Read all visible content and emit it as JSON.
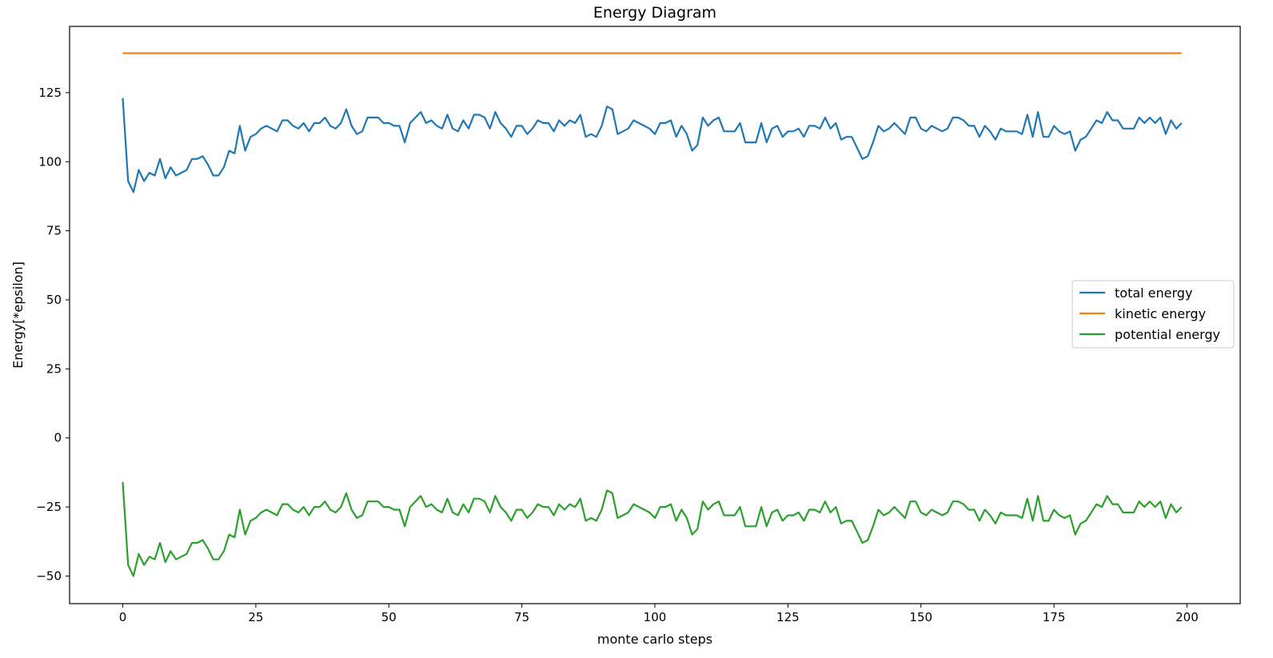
{
  "chart_data": {
    "type": "line",
    "title": "Energy Diagram",
    "xlabel": "monte carlo steps",
    "ylabel": "Energy[*epsilon]",
    "xlim": [
      -10,
      210
    ],
    "ylim": [
      -60,
      149
    ],
    "xticks": [
      0,
      25,
      50,
      75,
      100,
      125,
      150,
      175,
      200
    ],
    "yticks": [
      -50,
      -25,
      0,
      25,
      50,
      75,
      100,
      125
    ],
    "grid": false,
    "legend_position": "center-right",
    "series": [
      {
        "name": "total energy",
        "color": "#1f77b4",
        "x_start": 0,
        "x_step": 1,
        "values": [
          123,
          93,
          89,
          97,
          93,
          96,
          95,
          101,
          94,
          98,
          95,
          96,
          97,
          101,
          101,
          102,
          99,
          95,
          95,
          98,
          104,
          103,
          113,
          104,
          109,
          110,
          112,
          113,
          112,
          111,
          115,
          115,
          113,
          112,
          114,
          111,
          114,
          114,
          116,
          113,
          112,
          114,
          119,
          113,
          110,
          111,
          116,
          116,
          116,
          114,
          114,
          113,
          113,
          107,
          114,
          116,
          118,
          114,
          115,
          113,
          112,
          117,
          112,
          111,
          115,
          112,
          117,
          117,
          116,
          112,
          118,
          114,
          112,
          109,
          113,
          113,
          110,
          112,
          115,
          114,
          114,
          111,
          115,
          113,
          115,
          114,
          117,
          109,
          110,
          109,
          113,
          120,
          119,
          110,
          111,
          112,
          115,
          114,
          113,
          112,
          110,
          114,
          114,
          115,
          109,
          113,
          110,
          104,
          106,
          116,
          113,
          115,
          116,
          111,
          111,
          111,
          114,
          107,
          107,
          107,
          114,
          107,
          112,
          113,
          109,
          111,
          111,
          112,
          109,
          113,
          113,
          112,
          116,
          112,
          114,
          108,
          109,
          109,
          105,
          101,
          102,
          107,
          113,
          111,
          112,
          114,
          112,
          110,
          116,
          116,
          112,
          111,
          113,
          112,
          111,
          112,
          116,
          116,
          115,
          113,
          113,
          109,
          113,
          111,
          108,
          112,
          111,
          111,
          111,
          110,
          117,
          109,
          118,
          109,
          109,
          113,
          111,
          110,
          111,
          104,
          108,
          109,
          112,
          115,
          114,
          118,
          115,
          115,
          112,
          112,
          112,
          116,
          114,
          116,
          114,
          116,
          110,
          115,
          112,
          114
        ]
      },
      {
        "name": "kinetic energy",
        "color": "#ff7f0e",
        "x_start": 0,
        "x_step": 1,
        "values": "constant",
        "value": 139.3,
        "count": 200
      },
      {
        "name": "potential energy",
        "color": "#2ca02c",
        "x_start": 0,
        "x_step": 1,
        "values": [
          -16,
          -46,
          -50,
          -42,
          -46,
          -43,
          -44,
          -38,
          -45,
          -41,
          -44,
          -43,
          -42,
          -38,
          -38,
          -37,
          -40,
          -44,
          -44,
          -41,
          -35,
          -36,
          -26,
          -35,
          -30,
          -29,
          -27,
          -26,
          -27,
          -28,
          -24,
          -24,
          -26,
          -27,
          -25,
          -28,
          -25,
          -25,
          -23,
          -26,
          -27,
          -25,
          -20,
          -26,
          -29,
          -28,
          -23,
          -23,
          -23,
          -25,
          -25,
          -26,
          -26,
          -32,
          -25,
          -23,
          -21,
          -25,
          -24,
          -26,
          -27,
          -22,
          -27,
          -28,
          -24,
          -27,
          -22,
          -22,
          -23,
          -27,
          -21,
          -25,
          -27,
          -30,
          -26,
          -26,
          -29,
          -27,
          -24,
          -25,
          -25,
          -28,
          -24,
          -26,
          -24,
          -25,
          -22,
          -30,
          -29,
          -30,
          -26,
          -19,
          -20,
          -29,
          -28,
          -27,
          -24,
          -25,
          -26,
          -27,
          -29,
          -25,
          -25,
          -24,
          -30,
          -26,
          -29,
          -35,
          -33,
          -23,
          -26,
          -24,
          -23,
          -28,
          -28,
          -28,
          -25,
          -32,
          -32,
          -32,
          -25,
          -32,
          -27,
          -26,
          -30,
          -28,
          -28,
          -27,
          -30,
          -26,
          -26,
          -27,
          -23,
          -27,
          -25,
          -31,
          -30,
          -30,
          -34,
          -38,
          -37,
          -32,
          -26,
          -28,
          -27,
          -25,
          -27,
          -29,
          -23,
          -23,
          -27,
          -28,
          -26,
          -27,
          -28,
          -27,
          -23,
          -23,
          -24,
          -26,
          -26,
          -30,
          -26,
          -28,
          -31,
          -27,
          -28,
          -28,
          -28,
          -29,
          -22,
          -30,
          -21,
          -30,
          -30,
          -26,
          -28,
          -29,
          -28,
          -35,
          -31,
          -30,
          -27,
          -24,
          -25,
          -21,
          -24,
          -24,
          -27,
          -27,
          -27,
          -23,
          -25,
          -23,
          -25,
          -23,
          -29,
          -24,
          -27,
          -25
        ]
      }
    ]
  }
}
